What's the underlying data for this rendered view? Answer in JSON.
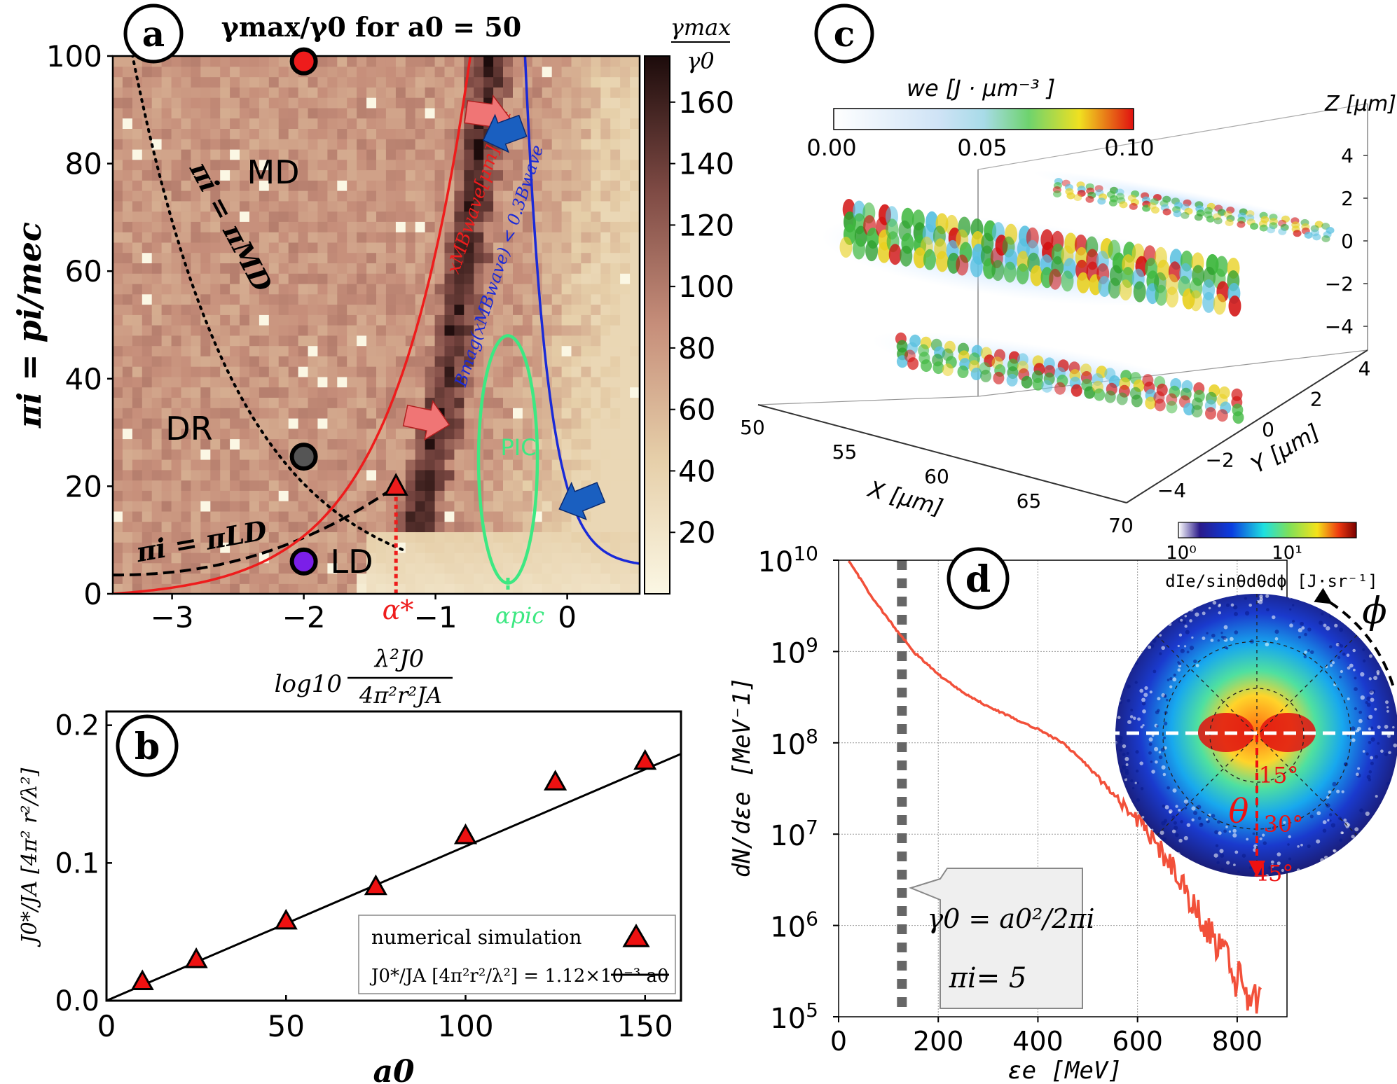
{
  "panels": {
    "a": {
      "badge": "a",
      "title": "γmax/γ0  for  a0 = 50",
      "colorbar_label_top": "γmax",
      "colorbar_label_bottom": "γ0",
      "ylabel": "πi = pi/mec",
      "xlabel_prefix": "log10",
      "xlabel_num": "λ²J0",
      "xlabel_den": "4π²r²JA",
      "regions": [
        "MD",
        "DR",
        "LD"
      ],
      "curve_labels": {
        "pi_md": "πi = πMD",
        "pi_ld": "πi = πLD",
        "red_condition": "xMBwave[μm] < 4",
        "blue_condition": "Bmag(xMBwave) < 0.3Bwave",
        "pic": "PIC",
        "alpha_star": "α*",
        "alpha_pic": "αpic"
      },
      "colors": {
        "red": "#ee1c1c",
        "blue": "#1a2ad8",
        "green": "#3de882",
        "purple": "#8a2be2",
        "gray": "#555555"
      }
    },
    "b": {
      "badge": "b"
    },
    "c": {
      "badge": "c",
      "cbar_title": "we [J · μm⁻³ ]",
      "cbar_ticks": [
        "0.00",
        "0.05",
        "0.10"
      ],
      "x_axis_label": "X  [μm]",
      "x_ticks": [
        "50",
        "55",
        "60",
        "65",
        "70"
      ],
      "y_axis_label": "Y  [μm]",
      "y_ticks": [
        "4",
        "2",
        "0",
        "−2",
        "−4"
      ],
      "z_axis_label": "Z [μm]",
      "z_ticks": [
        "4",
        "2",
        "0",
        "−2",
        "−4"
      ]
    },
    "d": {
      "badge": "d",
      "callout_gamma": "γ0 = a0²/2πi",
      "callout_pi": "πi= 5",
      "inset_cbar_ticks": [
        "10⁰",
        "10¹"
      ],
      "inset_label": "dIe/sinθdθdϕ [J·sr⁻¹]",
      "phi": "ϕ",
      "theta": "θ",
      "angles": [
        "15°",
        "30°",
        "45°"
      ]
    }
  },
  "chart_data": [
    {
      "id": "a",
      "type": "heatmap",
      "title": "γmax/γ0 for a0 = 50",
      "xlabel": "log10 λ²J0/(4π²r²JA)",
      "ylabel": "πi = pi/mec",
      "xlim": [
        -3.45,
        0.55
      ],
      "ylim": [
        0,
        100
      ],
      "x_ticks": [
        -3,
        -2,
        -1,
        0
      ],
      "x_tick_labels": [
        "−3",
        "−2",
        "−1",
        "0"
      ],
      "y_ticks": [
        0,
        20,
        40,
        60,
        80,
        100
      ],
      "colorbar": {
        "ticks": [
          20,
          40,
          60,
          80,
          100,
          120,
          140,
          160
        ],
        "range": [
          0,
          175
        ]
      },
      "markers": [
        {
          "x": -2.0,
          "y": 99,
          "color": "red",
          "shape": "circle"
        },
        {
          "x": -2.0,
          "y": 25.5,
          "color": "gray",
          "shape": "circle"
        },
        {
          "x": -2.0,
          "y": 6,
          "color": "purple",
          "shape": "circle"
        },
        {
          "x": -1.3,
          "y": 20,
          "color": "red",
          "shape": "triangle"
        }
      ],
      "alpha_star": -1.3,
      "alpha_pic": -0.45
    },
    {
      "id": "b",
      "type": "scatter",
      "xlabel": "a0",
      "ylabel": "J0*/JA [4π² r²/λ²]",
      "xlim": [
        0,
        160
      ],
      "ylim": [
        0,
        0.21
      ],
      "x_ticks": [
        0,
        50,
        100,
        150
      ],
      "y_ticks": [
        0.0,
        0.1,
        0.2
      ],
      "y_tick_labels": [
        "0.0",
        "0.1",
        "0.2"
      ],
      "series": [
        {
          "name": "numerical simulation",
          "x": [
            10,
            25,
            50,
            75,
            100,
            125,
            150
          ],
          "y": [
            0.014,
            0.03,
            0.058,
            0.083,
            0.12,
            0.159,
            0.174
          ]
        },
        {
          "name": "J0*/JA [4π²r²/λ²] = 1.12×10⁻³ a0",
          "fit_slope": 0.00112
        }
      ]
    },
    {
      "id": "d",
      "type": "line",
      "xlabel": "εe  [MeV]",
      "ylabel": "dN/dεe  [MeV⁻1]",
      "xlim": [
        0,
        900
      ],
      "ylim_log10": [
        5,
        10
      ],
      "x_ticks": [
        0,
        200,
        400,
        600,
        800
      ],
      "y_ticks_log10": [
        5,
        6,
        7,
        8,
        9,
        10
      ],
      "gamma0_MeV": 127,
      "series": [
        {
          "name": "spectrum",
          "x": [
            20,
            60,
            100,
            150,
            200,
            250,
            300,
            350,
            400,
            450,
            500,
            550,
            600,
            650,
            700,
            750,
            800,
            850
          ],
          "log10y": [
            10.0,
            9.65,
            9.35,
            9.0,
            8.75,
            8.55,
            8.4,
            8.27,
            8.15,
            8.0,
            7.75,
            7.45,
            7.15,
            6.8,
            6.35,
            5.9,
            5.4,
            5.05
          ]
        }
      ]
    }
  ]
}
